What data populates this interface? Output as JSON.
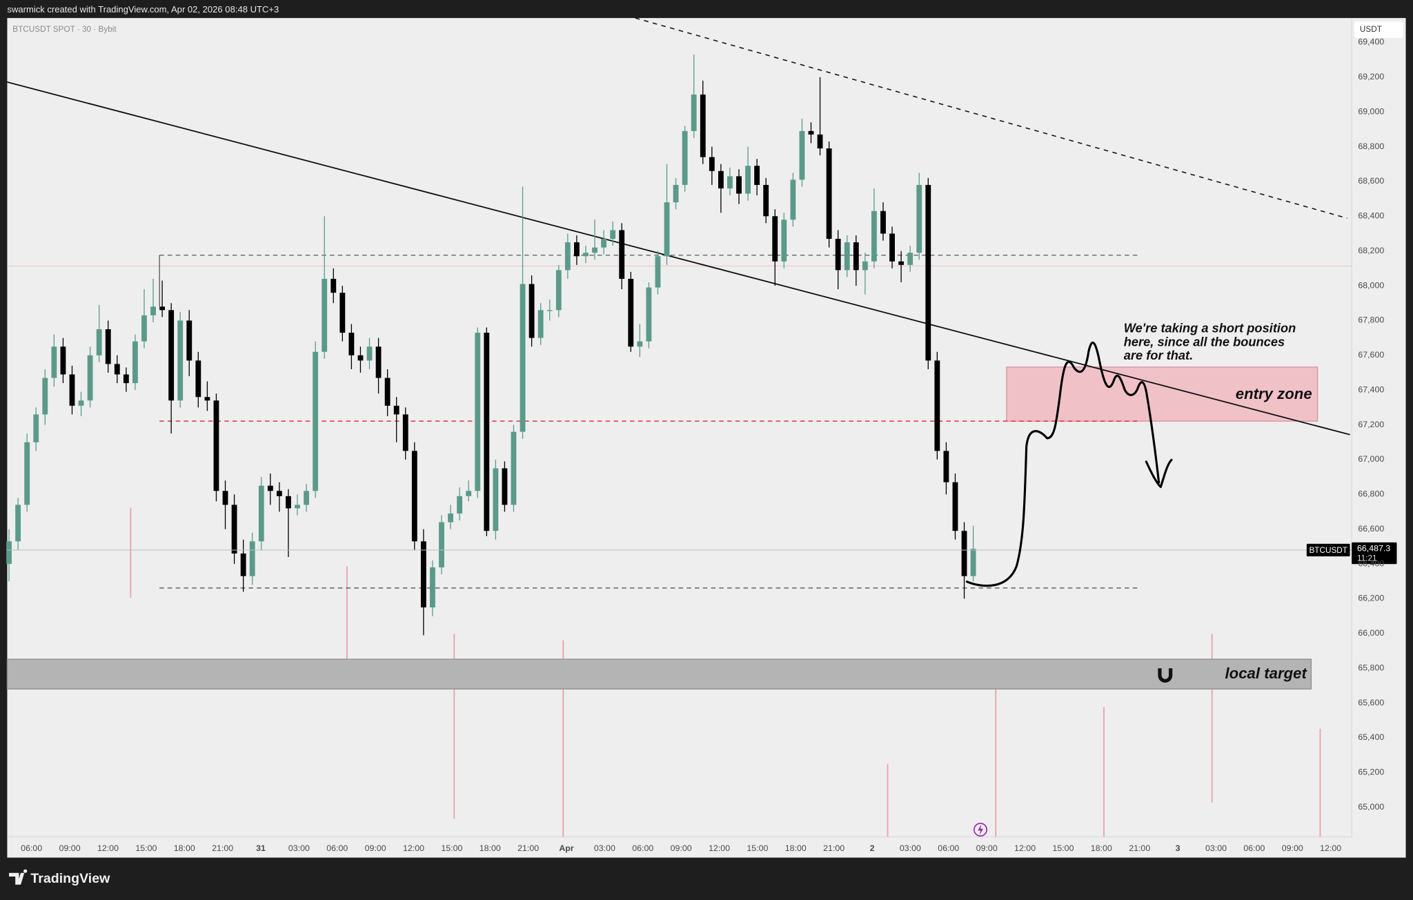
{
  "header": "swarmick created with TradingView.com, Apr 02, 2026 08:48 UTC+3",
  "footer": "TradingView",
  "chart_data": {
    "type": "candlestick",
    "symbol": "BTCUSDT SPOT · 30 · Bybit",
    "currency": "USDT",
    "series_name": "BTCUSDT",
    "up_color": "#5b9a8b",
    "down_color": "#000000",
    "grid": false,
    "ylim": [
      64830,
      69540
    ],
    "yticks": [
      {
        "value": 65000,
        "label": "65,000"
      },
      {
        "value": 65200,
        "label": "65,200"
      },
      {
        "value": 65400,
        "label": "65,400"
      },
      {
        "value": 65600,
        "label": "65,600"
      },
      {
        "value": 65800,
        "label": "65,800"
      },
      {
        "value": 66000,
        "label": "66,000"
      },
      {
        "value": 66200,
        "label": "66,200"
      },
      {
        "value": 66400,
        "label": "66,400"
      },
      {
        "value": 66600,
        "label": "66,600"
      },
      {
        "value": 66800,
        "label": "66,800"
      },
      {
        "value": 67000,
        "label": "67,000"
      },
      {
        "value": 67200,
        "label": "67,200"
      },
      {
        "value": 67400,
        "label": "67,400"
      },
      {
        "value": 67600,
        "label": "67,600"
      },
      {
        "value": 67800,
        "label": "67,800"
      },
      {
        "value": 68000,
        "label": "68,000"
      },
      {
        "value": 68200,
        "label": "68,200"
      },
      {
        "value": 68400,
        "label": "68,400"
      },
      {
        "value": 68600,
        "label": "68,600"
      },
      {
        "value": 68800,
        "label": "68,800"
      },
      {
        "value": 69000,
        "label": "69,000"
      },
      {
        "value": 69200,
        "label": "69,200"
      },
      {
        "value": 69400,
        "label": "69,400"
      }
    ],
    "xticks": [
      "06:00",
      "09:00",
      "12:00",
      "15:00",
      "18:00",
      "21:00",
      "31",
      "03:00",
      "06:00",
      "09:00",
      "12:00",
      "15:00",
      "18:00",
      "21:00",
      "Apr",
      "03:00",
      "06:00",
      "09:00",
      "12:00",
      "15:00",
      "18:00",
      "21:00",
      "2",
      "03:00",
      "06:00",
      "09:00",
      "12:00",
      "15:00",
      "18:00",
      "21:00",
      "3",
      "03:00",
      "06:00",
      "09:00",
      "12:00"
    ],
    "last_price": {
      "value": 66487.3,
      "label": "66,487.3"
    },
    "countdown": "11:21",
    "annotations": {
      "note": [
        "We're taking a short position",
        "here, since all the bounces",
        "are for that."
      ],
      "entry_zone": "entry zone",
      "local_target": "local target"
    },
    "candles": [
      [
        66400,
        66600,
        66300,
        66530
      ],
      [
        66530,
        66780,
        66480,
        66740
      ],
      [
        66740,
        67150,
        66700,
        67100
      ],
      [
        67100,
        67300,
        67050,
        67260
      ],
      [
        67260,
        67520,
        67200,
        67470
      ],
      [
        67470,
        67720,
        67420,
        67650
      ],
      [
        67650,
        67700,
        67440,
        67490
      ],
      [
        67490,
        67540,
        67260,
        67310
      ],
      [
        67310,
        67390,
        67250,
        67340
      ],
      [
        67340,
        67650,
        67300,
        67600
      ],
      [
        67600,
        67890,
        67560,
        67750
      ],
      [
        67750,
        67800,
        67500,
        67550
      ],
      [
        67550,
        67600,
        67440,
        67490
      ],
      [
        67490,
        67530,
        67390,
        67440
      ],
      [
        67440,
        67720,
        67400,
        67680
      ],
      [
        67680,
        67980,
        67640,
        67830
      ],
      [
        67830,
        68040,
        67790,
        67880
      ],
      [
        67880,
        68030,
        67820,
        67860
      ],
      [
        67860,
        67900,
        67150,
        67340
      ],
      [
        67340,
        67850,
        67300,
        67800
      ],
      [
        67800,
        67860,
        67480,
        67570
      ],
      [
        67570,
        67620,
        67300,
        67360
      ],
      [
        67360,
        67450,
        67280,
        67340
      ],
      [
        67340,
        67380,
        66760,
        66820
      ],
      [
        66820,
        66880,
        66600,
        66740
      ],
      [
        66740,
        66800,
        66400,
        66460
      ],
      [
        66460,
        66540,
        66240,
        66330
      ],
      [
        66330,
        66580,
        66280,
        66530
      ],
      [
        66530,
        66900,
        66480,
        66850
      ],
      [
        66850,
        66920,
        66740,
        66820
      ],
      [
        66820,
        66870,
        66700,
        66790
      ],
      [
        66790,
        66830,
        66440,
        66720
      ],
      [
        66720,
        66800,
        66680,
        66740
      ],
      [
        66740,
        66860,
        66700,
        66820
      ],
      [
        66820,
        67680,
        66780,
        67620
      ],
      [
        67620,
        68400,
        67580,
        68040
      ],
      [
        68040,
        68100,
        67900,
        67960
      ],
      [
        67960,
        68000,
        67680,
        67730
      ],
      [
        67730,
        67780,
        67520,
        67600
      ],
      [
        67600,
        67650,
        67500,
        67570
      ],
      [
        67570,
        67700,
        67520,
        67650
      ],
      [
        67650,
        67700,
        67380,
        67470
      ],
      [
        67470,
        67520,
        67250,
        67310
      ],
      [
        67310,
        67360,
        67100,
        67260
      ],
      [
        67260,
        67300,
        67000,
        67050
      ],
      [
        67050,
        67100,
        66480,
        66530
      ],
      [
        66530,
        66600,
        65990,
        66150
      ],
      [
        66150,
        66420,
        66100,
        66380
      ],
      [
        66380,
        66680,
        66340,
        66640
      ],
      [
        66640,
        66740,
        66600,
        66690
      ],
      [
        66690,
        66840,
        66650,
        66790
      ],
      [
        66790,
        66880,
        66760,
        66820
      ],
      [
        66820,
        67760,
        66780,
        67730
      ],
      [
        67730,
        67760,
        66560,
        66590
      ],
      [
        66590,
        67000,
        66540,
        66950
      ],
      [
        66950,
        66990,
        66700,
        66740
      ],
      [
        66740,
        67200,
        66700,
        67160
      ],
      [
        67160,
        68570,
        67120,
        68010
      ],
      [
        68010,
        68060,
        67650,
        67700
      ],
      [
        67700,
        67900,
        67660,
        67860
      ],
      [
        67860,
        67920,
        67800,
        67860
      ],
      [
        67860,
        68120,
        67820,
        68090
      ],
      [
        68090,
        68300,
        68040,
        68250
      ],
      [
        68250,
        68290,
        68120,
        68170
      ],
      [
        68170,
        68230,
        68130,
        68190
      ],
      [
        68190,
        68380,
        68150,
        68220
      ],
      [
        68220,
        68320,
        68180,
        68270
      ],
      [
        68270,
        68370,
        68230,
        68320
      ],
      [
        68320,
        68360,
        67980,
        68040
      ],
      [
        68040,
        68080,
        67620,
        67650
      ],
      [
        67650,
        67780,
        67590,
        67680
      ],
      [
        67680,
        68020,
        67640,
        67990
      ],
      [
        67990,
        68200,
        67950,
        68170
      ],
      [
        68170,
        68700,
        68120,
        68480
      ],
      [
        68480,
        68620,
        68440,
        68580
      ],
      [
        68580,
        68920,
        68540,
        68890
      ],
      [
        68890,
        69330,
        68850,
        69100
      ],
      [
        69100,
        69180,
        68700,
        68740
      ],
      [
        68740,
        68800,
        68580,
        68660
      ],
      [
        68660,
        68700,
        68420,
        68560
      ],
      [
        68560,
        68680,
        68520,
        68630
      ],
      [
        68630,
        68670,
        68470,
        68530
      ],
      [
        68530,
        68800,
        68490,
        68690
      ],
      [
        68690,
        68730,
        68520,
        68580
      ],
      [
        68580,
        68620,
        68360,
        68400
      ],
      [
        68400,
        68440,
        68000,
        68140
      ],
      [
        68140,
        68420,
        68100,
        68380
      ],
      [
        68380,
        68650,
        68340,
        68610
      ],
      [
        68610,
        68960,
        68570,
        68890
      ],
      [
        68890,
        68940,
        68820,
        68870
      ],
      [
        68870,
        69200,
        68750,
        68790
      ],
      [
        68790,
        68830,
        68220,
        68270
      ],
      [
        68270,
        68320,
        67980,
        68090
      ],
      [
        68090,
        68290,
        68050,
        68250
      ],
      [
        68250,
        68290,
        68000,
        68090
      ],
      [
        68090,
        68190,
        67950,
        68140
      ],
      [
        68140,
        68560,
        68100,
        68430
      ],
      [
        68430,
        68480,
        68260,
        68300
      ],
      [
        68300,
        68340,
        68100,
        68140
      ],
      [
        68140,
        68200,
        68020,
        68120
      ],
      [
        68120,
        68230,
        68080,
        68190
      ],
      [
        68190,
        68650,
        68150,
        68580
      ],
      [
        68580,
        68620,
        67520,
        67570
      ],
      [
        67570,
        67620,
        67000,
        67050
      ],
      [
        67050,
        67100,
        66800,
        66870
      ],
      [
        66870,
        66920,
        66540,
        66590
      ],
      [
        66590,
        66640,
        66200,
        66330
      ],
      [
        66330,
        66620,
        66300,
        66487.3
      ]
    ]
  }
}
